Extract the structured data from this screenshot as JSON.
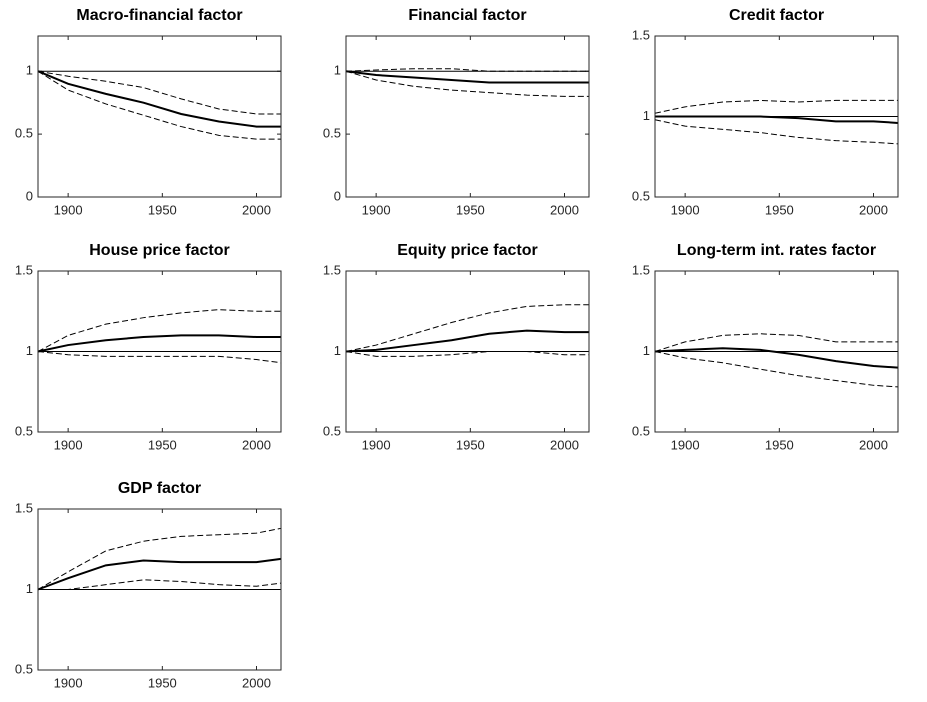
{
  "chart_data": [
    {
      "type": "line",
      "title": "Macro-financial factor",
      "x": [
        1884,
        1900,
        1920,
        1940,
        1960,
        1980,
        2000,
        2013
      ],
      "xlim": [
        1884,
        2013
      ],
      "ylim": [
        0,
        1.28
      ],
      "xticks": [
        1900,
        1950,
        2000
      ],
      "yticks": [
        0,
        0.5,
        1
      ],
      "reference_line": 1,
      "series": [
        {
          "color": "#000000",
          "dashed": false,
          "values": [
            1,
            0.9,
            0.82,
            0.75,
            0.66,
            0.6,
            0.56,
            0.56
          ]
        },
        {
          "color": "#000000",
          "dashed": true,
          "values": [
            1,
            0.96,
            0.92,
            0.87,
            0.78,
            0.7,
            0.66,
            0.66
          ]
        },
        {
          "color": "#000000",
          "dashed": true,
          "values": [
            1,
            0.85,
            0.74,
            0.65,
            0.56,
            0.49,
            0.46,
            0.46
          ]
        }
      ]
    },
    {
      "type": "line",
      "title": "Financial factor",
      "x": [
        1884,
        1900,
        1920,
        1940,
        1960,
        1980,
        2000,
        2013
      ],
      "xlim": [
        1884,
        2013
      ],
      "ylim": [
        0,
        1.28
      ],
      "xticks": [
        1900,
        1950,
        2000
      ],
      "yticks": [
        0,
        0.5,
        1
      ],
      "reference_line": 1,
      "series": [
        {
          "color": "#000000",
          "dashed": false,
          "values": [
            1,
            0.97,
            0.95,
            0.93,
            0.91,
            0.91,
            0.91,
            0.91
          ]
        },
        {
          "color": "#000000",
          "dashed": true,
          "values": [
            1,
            1.01,
            1.02,
            1.02,
            1.0,
            1.0,
            1.0,
            1.0
          ]
        },
        {
          "color": "#000000",
          "dashed": true,
          "values": [
            1,
            0.93,
            0.88,
            0.85,
            0.83,
            0.81,
            0.8,
            0.8
          ]
        }
      ]
    },
    {
      "type": "line",
      "title": "Credit factor",
      "x": [
        1884,
        1900,
        1920,
        1940,
        1960,
        1980,
        2000,
        2013
      ],
      "xlim": [
        1884,
        2013
      ],
      "ylim": [
        0.5,
        1.5
      ],
      "xticks": [
        1900,
        1950,
        2000
      ],
      "yticks": [
        0.5,
        1,
        1.5
      ],
      "reference_line": 1,
      "series": [
        {
          "color": "#000000",
          "dashed": false,
          "values": [
            1,
            1,
            1,
            1,
            0.99,
            0.97,
            0.97,
            0.96
          ]
        },
        {
          "color": "#000000",
          "dashed": true,
          "values": [
            1.02,
            1.06,
            1.09,
            1.1,
            1.09,
            1.1,
            1.1,
            1.1
          ]
        },
        {
          "color": "#000000",
          "dashed": true,
          "values": [
            0.98,
            0.94,
            0.92,
            0.9,
            0.87,
            0.85,
            0.84,
            0.83
          ]
        }
      ]
    },
    {
      "type": "line",
      "title": "House price factor",
      "x": [
        1884,
        1900,
        1920,
        1940,
        1960,
        1980,
        2000,
        2013
      ],
      "xlim": [
        1884,
        2013
      ],
      "ylim": [
        0.5,
        1.5
      ],
      "xticks": [
        1900,
        1950,
        2000
      ],
      "yticks": [
        0.5,
        1,
        1.5
      ],
      "reference_line": 1,
      "series": [
        {
          "color": "#000000",
          "dashed": false,
          "values": [
            1,
            1.04,
            1.07,
            1.09,
            1.1,
            1.1,
            1.09,
            1.09
          ]
        },
        {
          "color": "#000000",
          "dashed": true,
          "values": [
            1,
            1.1,
            1.17,
            1.21,
            1.24,
            1.26,
            1.25,
            1.25
          ]
        },
        {
          "color": "#000000",
          "dashed": true,
          "values": [
            1,
            0.98,
            0.97,
            0.97,
            0.97,
            0.97,
            0.95,
            0.93
          ]
        }
      ]
    },
    {
      "type": "line",
      "title": "Equity price factor",
      "x": [
        1884,
        1900,
        1920,
        1940,
        1960,
        1980,
        2000,
        2013
      ],
      "xlim": [
        1884,
        2013
      ],
      "ylim": [
        0.5,
        1.5
      ],
      "xticks": [
        1900,
        1950,
        2000
      ],
      "yticks": [
        0.5,
        1,
        1.5
      ],
      "reference_line": 1,
      "series": [
        {
          "color": "#000000",
          "dashed": false,
          "values": [
            1,
            1.01,
            1.04,
            1.07,
            1.11,
            1.13,
            1.12,
            1.12
          ]
        },
        {
          "color": "#000000",
          "dashed": true,
          "values": [
            1,
            1.04,
            1.11,
            1.18,
            1.24,
            1.28,
            1.29,
            1.29
          ]
        },
        {
          "color": "#000000",
          "dashed": true,
          "values": [
            1,
            0.97,
            0.97,
            0.98,
            1.0,
            1.0,
            0.98,
            0.98
          ]
        }
      ]
    },
    {
      "type": "line",
      "title": "Long-term int. rates factor",
      "x": [
        1884,
        1900,
        1920,
        1940,
        1960,
        1980,
        2000,
        2013
      ],
      "xlim": [
        1884,
        2013
      ],
      "ylim": [
        0.5,
        1.5
      ],
      "xticks": [
        1900,
        1950,
        2000
      ],
      "yticks": [
        0.5,
        1,
        1.5
      ],
      "reference_line": 1,
      "series": [
        {
          "color": "#000000",
          "dashed": false,
          "values": [
            1,
            1.01,
            1.02,
            1.01,
            0.98,
            0.94,
            0.91,
            0.9
          ]
        },
        {
          "color": "#000000",
          "dashed": true,
          "values": [
            1,
            1.06,
            1.1,
            1.11,
            1.1,
            1.06,
            1.06,
            1.06
          ]
        },
        {
          "color": "#000000",
          "dashed": true,
          "values": [
            1,
            0.96,
            0.93,
            0.89,
            0.85,
            0.82,
            0.79,
            0.78
          ]
        }
      ]
    },
    {
      "type": "line",
      "title": "GDP factor",
      "x": [
        1884,
        1900,
        1920,
        1940,
        1960,
        1980,
        2000,
        2013
      ],
      "xlim": [
        1884,
        2013
      ],
      "ylim": [
        0.5,
        1.5
      ],
      "xticks": [
        1900,
        1950,
        2000
      ],
      "yticks": [
        0.5,
        1,
        1.5
      ],
      "reference_line": 1,
      "series": [
        {
          "color": "#000000",
          "dashed": false,
          "values": [
            1,
            1.07,
            1.15,
            1.18,
            1.17,
            1.17,
            1.17,
            1.19
          ]
        },
        {
          "color": "#000000",
          "dashed": true,
          "values": [
            1,
            1.11,
            1.24,
            1.3,
            1.33,
            1.34,
            1.35,
            1.38
          ]
        },
        {
          "color": "#000000",
          "dashed": true,
          "values": [
            1,
            1.0,
            1.03,
            1.06,
            1.05,
            1.03,
            1.02,
            1.04
          ]
        }
      ]
    }
  ]
}
